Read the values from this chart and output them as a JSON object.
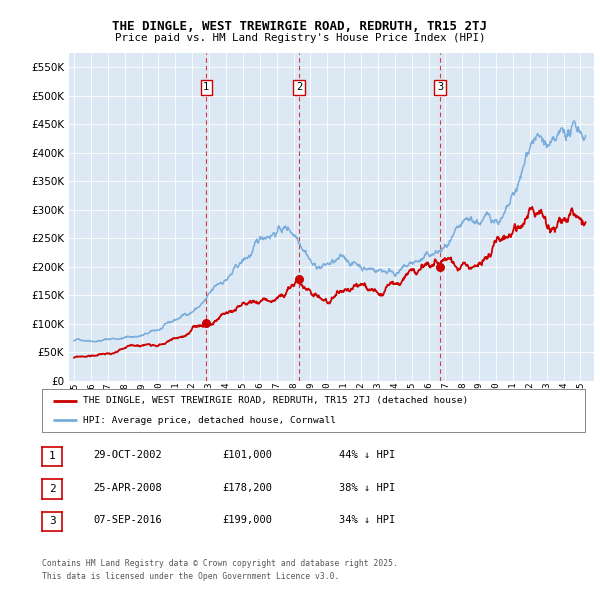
{
  "title": "THE DINGLE, WEST TREWIRGIE ROAD, REDRUTH, TR15 2TJ",
  "subtitle": "Price paid vs. HM Land Registry's House Price Index (HPI)",
  "legend_line1": "THE DINGLE, WEST TREWIRGIE ROAD, REDRUTH, TR15 2TJ (detached house)",
  "legend_line2": "HPI: Average price, detached house, Cornwall",
  "footer1": "Contains HM Land Registry data © Crown copyright and database right 2025.",
  "footer2": "This data is licensed under the Open Government Licence v3.0.",
  "sale_color": "#cc0000",
  "hpi_color": "#7aaddb",
  "background_color": "#dce9f5",
  "ylim": [
    0,
    575000
  ],
  "yticks": [
    0,
    50000,
    100000,
    150000,
    200000,
    250000,
    300000,
    350000,
    400000,
    450000,
    500000,
    550000
  ],
  "sales": [
    {
      "date_num": 2002.83,
      "price": 101000,
      "label": "1"
    },
    {
      "date_num": 2008.32,
      "price": 178200,
      "label": "2"
    },
    {
      "date_num": 2016.68,
      "price": 199000,
      "label": "3"
    }
  ],
  "sale_table": [
    {
      "num": "1",
      "date": "29-OCT-2002",
      "price": "£101,000",
      "pct": "44% ↓ HPI"
    },
    {
      "num": "2",
      "date": "25-APR-2008",
      "price": "£178,200",
      "pct": "38% ↓ HPI"
    },
    {
      "num": "3",
      "date": "07-SEP-2016",
      "price": "£199,000",
      "pct": "34% ↓ HPI"
    }
  ]
}
